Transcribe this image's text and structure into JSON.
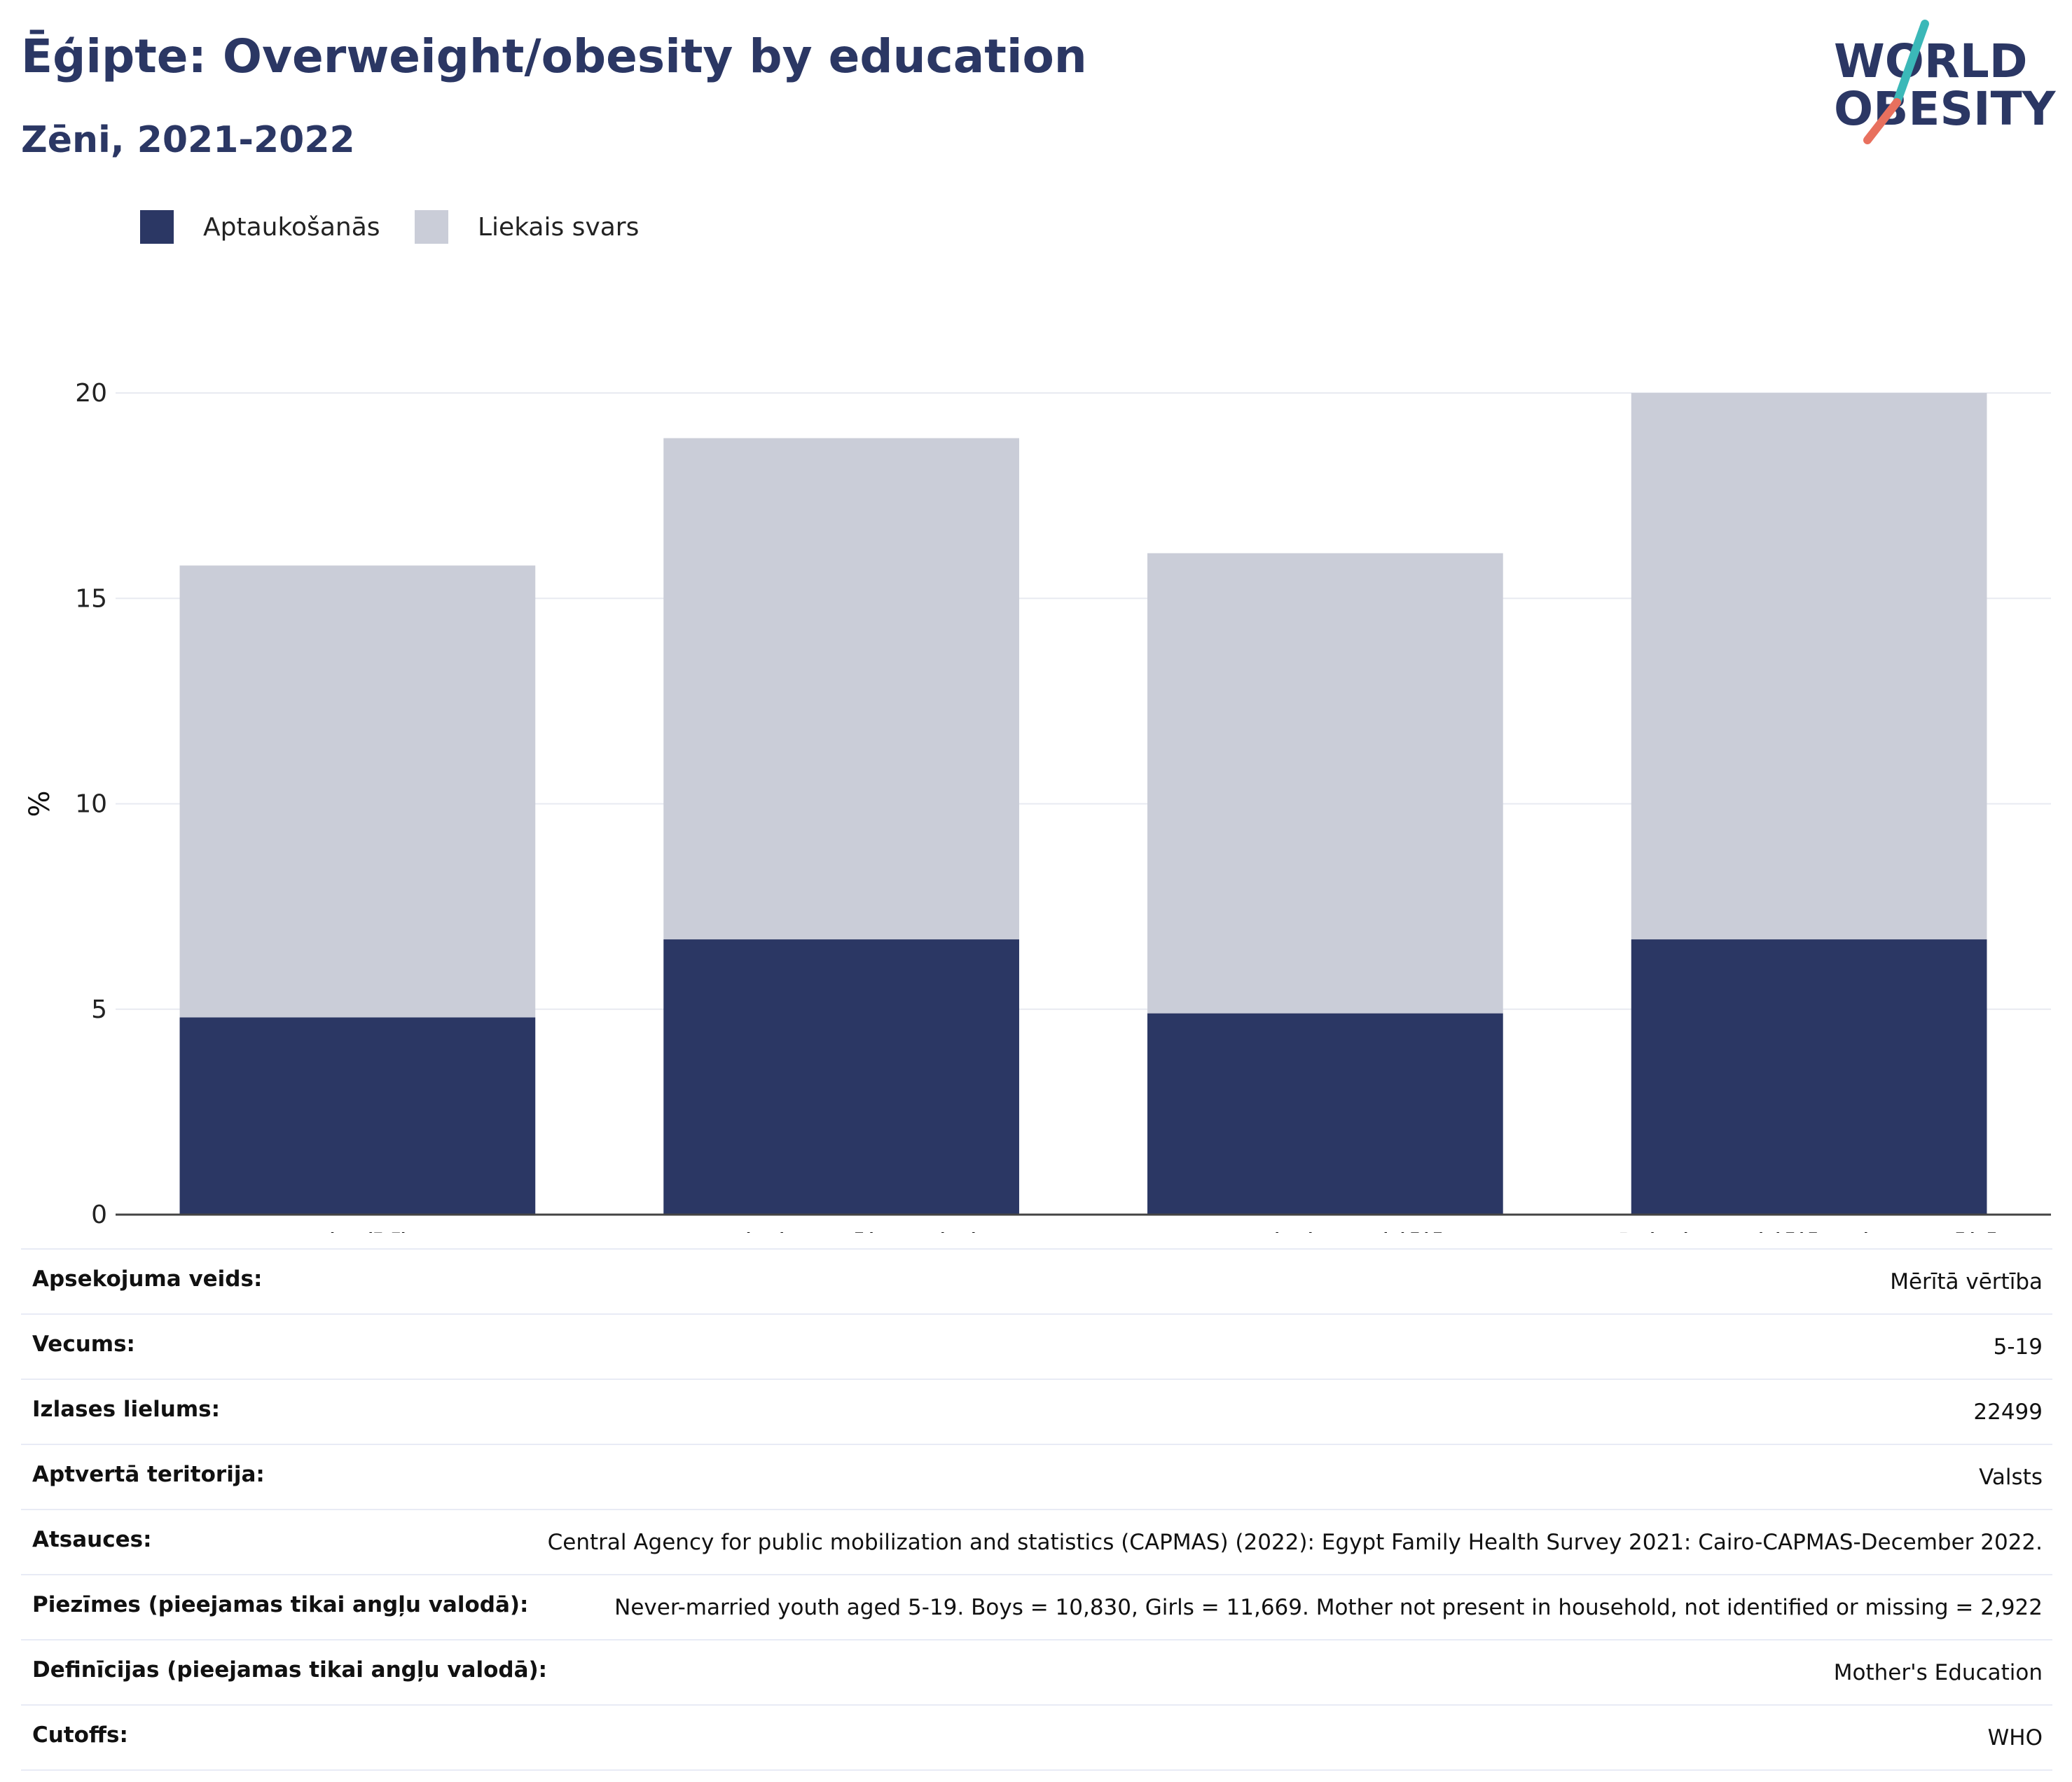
{
  "header": {
    "title": "Ēģipte: Overweight/obesity by education",
    "subtitle": "Zēni, 2021-2022"
  },
  "logo": {
    "line1": "WORLD",
    "line2": "OBESITY",
    "colors": {
      "text": "#2b3764",
      "slash_top": "#3bb8b8",
      "slash_bottom": "#e8705e"
    }
  },
  "colors": {
    "obesity": "#2b3764",
    "overweight": "#cacdd8",
    "grid": "#e8eaf1",
    "axis": "#444444"
  },
  "chart_data": {
    "type": "bar",
    "stacked": true,
    "categories": [
      "Nav izglītības",
      "Nepabeigta sākumskolas",
      "Nepabeigta vidējā",
      "Pabeigta vidējā vai augstākā"
    ],
    "series": [
      {
        "name": "Aptaukošanās",
        "values": [
          4.8,
          6.7,
          4.9,
          6.7
        ]
      },
      {
        "name": "Liekais svars",
        "values": [
          11.0,
          12.2,
          11.2,
          13.3
        ]
      }
    ],
    "ylabel": "%",
    "ylim": [
      0,
      20
    ],
    "yticks": [
      0,
      5,
      10,
      15,
      20
    ],
    "grid": true,
    "legend": "top-left"
  },
  "metadata": [
    {
      "label": "Apsekojuma veids:",
      "value": "Mērītā vērtība"
    },
    {
      "label": "Vecums:",
      "value": "5-19"
    },
    {
      "label": "Izlases lielums:",
      "value": "22499"
    },
    {
      "label": "Aptvertā teritorija:",
      "value": "Valsts"
    },
    {
      "label": "Atsauces:",
      "value": "Central Agency for public mobilization and statistics (CAPMAS) (2022): Egypt Family Health Survey 2021: Cairo-CAPMAS-December 2022."
    },
    {
      "label": "Piezīmes (pieejamas tikai angļu valodā):",
      "value": "Never-married youth aged 5-19. Boys = 10,830, Girls = 11,669. Mother not present in household, not identified or missing = 2,922"
    },
    {
      "label": "Definīcijas (pieejamas tikai angļu valodā):",
      "value": "Mother's Education"
    },
    {
      "label": "Cutoffs:",
      "value": "WHO"
    }
  ]
}
